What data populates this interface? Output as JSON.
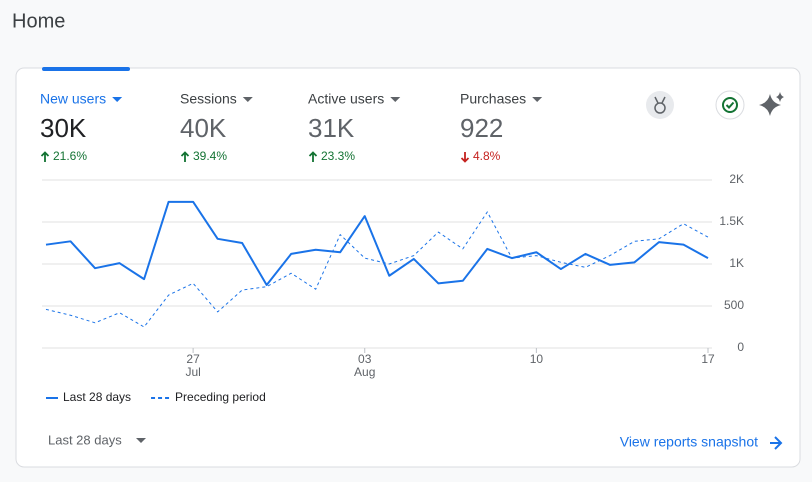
{
  "page": {
    "title": "Home",
    "metrics": [
      {
        "label": "New users",
        "value": "30K",
        "change": "21.6%",
        "direction": "up",
        "selected": true
      },
      {
        "label": "Sessions",
        "value": "40K",
        "change": "39.4%",
        "direction": "up",
        "selected": false
      },
      {
        "label": "Active users",
        "value": "31K",
        "change": "23.3%",
        "direction": "up",
        "selected": false
      },
      {
        "label": "Purchases",
        "value": "922",
        "change": "4.8%",
        "direction": "down",
        "selected": false
      }
    ],
    "date_range": "Last 28 days",
    "link": "View reports snapshot"
  },
  "chart_data": {
    "type": "line",
    "categories": [
      null,
      null,
      null,
      null,
      null,
      null,
      "27",
      null,
      null,
      null,
      null,
      null,
      null,
      "03",
      null,
      null,
      null,
      null,
      null,
      null,
      "10",
      null,
      null,
      null,
      null,
      null,
      null,
      "17"
    ],
    "x_sublabels": [
      null,
      null,
      null,
      null,
      null,
      null,
      "Jul",
      null,
      null,
      null,
      null,
      null,
      null,
      "Aug",
      null,
      null,
      null,
      null,
      null,
      null,
      null,
      null,
      null,
      null,
      null,
      null,
      null,
      null
    ],
    "series": [
      {
        "name": "Last 28 days",
        "color": "#1a73e8",
        "dashed": false,
        "values": [
          1230,
          1270,
          950,
          1010,
          820,
          1740,
          1740,
          1300,
          1250,
          750,
          1120,
          1170,
          1140,
          1570,
          860,
          1060,
          770,
          800,
          1180,
          1070,
          1140,
          940,
          1120,
          990,
          1020,
          1260,
          1230,
          1070
        ]
      },
      {
        "name": "Preceding period",
        "color": "#1a73e8",
        "dashed": true,
        "values": [
          460,
          390,
          300,
          420,
          250,
          630,
          770,
          430,
          690,
          730,
          890,
          700,
          1350,
          1070,
          1000,
          1100,
          1380,
          1180,
          1620,
          1070,
          1100,
          1020,
          960,
          1100,
          1270,
          1300,
          1480,
          1320
        ]
      }
    ],
    "ylim": [
      0,
      2000
    ],
    "yticks": [
      0,
      500,
      {
        "value": 1000,
        "label": "1K"
      },
      {
        "value": 1500,
        "label": "1.5K"
      },
      {
        "value": 2000,
        "label": "2K"
      }
    ],
    "grid": true
  }
}
